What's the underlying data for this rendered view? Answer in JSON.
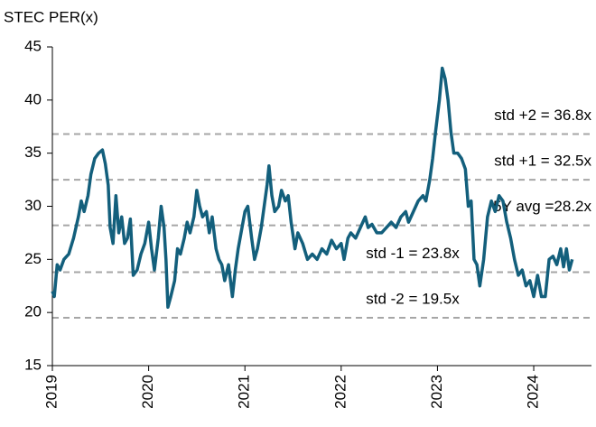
{
  "chart_data": {
    "type": "line",
    "title": "STEC PER(x)",
    "xlim": [
      2019,
      2024.6
    ],
    "xticks": [
      2019,
      2020,
      2021,
      2022,
      2023,
      2024
    ],
    "ylim": [
      15,
      45
    ],
    "yticks": [
      15,
      20,
      25,
      30,
      35,
      40,
      45
    ],
    "reference_lines": [
      {
        "value": 36.8,
        "label": "std +2 = 36.8x"
      },
      {
        "value": 32.5,
        "label": "std +1 = 32.5x"
      },
      {
        "value": 28.2,
        "label": "5Y avg =28.2x"
      },
      {
        "value": 23.8,
        "label": "std -1 = 23.8x"
      },
      {
        "value": 19.5,
        "label": "std -2 = 19.5x"
      }
    ],
    "reference_color": "#a6a6a6",
    "x": [
      2019.0,
      2019.02,
      2019.05,
      2019.08,
      2019.12,
      2019.17,
      2019.22,
      2019.27,
      2019.3,
      2019.33,
      2019.37,
      2019.4,
      2019.44,
      2019.48,
      2019.52,
      2019.55,
      2019.58,
      2019.6,
      2019.63,
      2019.66,
      2019.69,
      2019.72,
      2019.75,
      2019.78,
      2019.81,
      2019.84,
      2019.88,
      2019.92,
      2019.96,
      2020.0,
      2020.03,
      2020.06,
      2020.1,
      2020.13,
      2020.16,
      2020.18,
      2020.2,
      2020.23,
      2020.27,
      2020.3,
      2020.33,
      2020.37,
      2020.4,
      2020.43,
      2020.47,
      2020.5,
      2020.53,
      2020.56,
      2020.6,
      2020.63,
      2020.66,
      2020.7,
      2020.73,
      2020.76,
      2020.79,
      2020.83,
      2020.87,
      2020.9,
      2020.93,
      2020.97,
      2021.0,
      2021.03,
      2021.07,
      2021.1,
      2021.13,
      2021.17,
      2021.2,
      2021.23,
      2021.25,
      2021.28,
      2021.31,
      2021.35,
      2021.38,
      2021.42,
      2021.45,
      2021.48,
      2021.52,
      2021.55,
      2021.6,
      2021.65,
      2021.7,
      2021.75,
      2021.8,
      2021.85,
      2021.9,
      2021.95,
      2022.0,
      2022.03,
      2022.07,
      2022.1,
      2022.15,
      2022.2,
      2022.25,
      2022.28,
      2022.32,
      2022.37,
      2022.42,
      2022.47,
      2022.52,
      2022.57,
      2022.62,
      2022.67,
      2022.7,
      2022.75,
      2022.8,
      2022.85,
      2022.88,
      2022.92,
      2022.95,
      2022.98,
      2023.02,
      2023.05,
      2023.08,
      2023.11,
      2023.14,
      2023.17,
      2023.21,
      2023.25,
      2023.29,
      2023.32,
      2023.35,
      2023.38,
      2023.41,
      2023.44,
      2023.48,
      2023.52,
      2023.56,
      2023.6,
      2023.64,
      2023.68,
      2023.72,
      2023.76,
      2023.8,
      2023.84,
      2023.88,
      2023.92,
      2023.96,
      2024.0,
      2024.04,
      2024.08,
      2024.12,
      2024.16,
      2024.2,
      2024.24,
      2024.28,
      2024.31,
      2024.34,
      2024.37,
      2024.4
    ],
    "series": [
      {
        "name": "STEC PER",
        "color": "#135f7c",
        "values": [
          22,
          21.5,
          24.5,
          24,
          25,
          25.5,
          27,
          29,
          30.5,
          29.5,
          31,
          33,
          34.5,
          35,
          35.3,
          34,
          32,
          28,
          26.5,
          31,
          27.5,
          29,
          26.5,
          27,
          28.8,
          23.5,
          24,
          25.5,
          26.5,
          28.5,
          26,
          24,
          27,
          30,
          28,
          25,
          20.5,
          21.5,
          23,
          26,
          25.5,
          27,
          28.5,
          27.5,
          29,
          31.5,
          30,
          29,
          29.5,
          27.5,
          29,
          26,
          25,
          24.5,
          23,
          24.5,
          21.5,
          24,
          26,
          28,
          29.5,
          30,
          27,
          25,
          26,
          28,
          30,
          32,
          33.8,
          31,
          29.5,
          30,
          31.5,
          30.5,
          31,
          28.5,
          26,
          27.5,
          26.5,
          25,
          25.5,
          25,
          26,
          25.5,
          26.8,
          26,
          26.5,
          25,
          27,
          27.5,
          27,
          28,
          29,
          28,
          28.3,
          27.5,
          27.5,
          28,
          28.5,
          28,
          29,
          29.5,
          28.5,
          29.5,
          30.5,
          31,
          30.5,
          32.5,
          34.5,
          37,
          40,
          43,
          42,
          40,
          37,
          35,
          35,
          34.5,
          33.5,
          30,
          30.5,
          25,
          24.5,
          22.5,
          25,
          29,
          30.5,
          29.5,
          31,
          30.5,
          28.5,
          27,
          25,
          23.5,
          24,
          22.5,
          23,
          21.5,
          23.5,
          21.5,
          21.5,
          25,
          25.3,
          24.5,
          26,
          24.3,
          26,
          24,
          25
        ]
      }
    ]
  }
}
